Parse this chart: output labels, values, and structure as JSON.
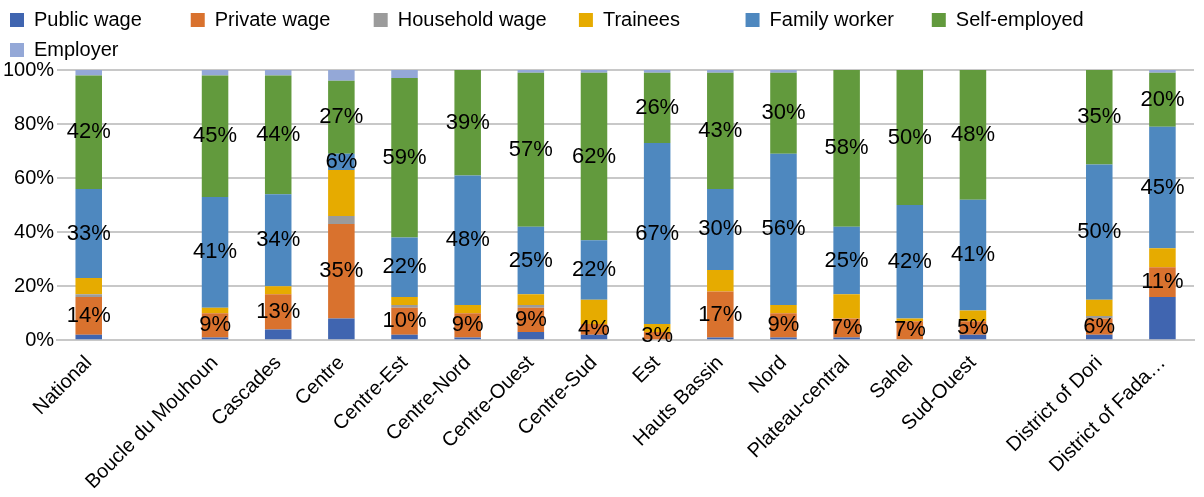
{
  "chart_data": {
    "type": "bar",
    "stacked": true,
    "categories": [
      "National",
      null,
      "Boucle du Mouhoun",
      "Cascades",
      "Centre",
      "Centre-Est",
      "Centre-Nord",
      "Centre-Ouest",
      "Centre-Sud",
      "Est",
      "Hauts Bassin",
      "Nord",
      "Plateau-central",
      "Sahel",
      "Sud-Ouest",
      null,
      "District of Dori",
      "District of Fada…"
    ],
    "ylim": [
      0,
      100
    ],
    "yticks": [
      {
        "value": 0,
        "label": "0%"
      },
      {
        "value": 20,
        "label": "20%"
      },
      {
        "value": 40,
        "label": "40%"
      },
      {
        "value": 60,
        "label": "60%"
      },
      {
        "value": 80,
        "label": "80%"
      },
      {
        "value": 100,
        "label": "100%"
      }
    ],
    "grid": "y",
    "legend": "top",
    "series": [
      {
        "name": "Public wage",
        "color": "#4065b0",
        "values": [
          2,
          null,
          1,
          4,
          8,
          2,
          1,
          3,
          2,
          0,
          1,
          1,
          1,
          0,
          2,
          null,
          2,
          16
        ]
      },
      {
        "name": "Private wage",
        "color": "#d9722e",
        "values": [
          14,
          null,
          9,
          13,
          35,
          10,
          9,
          9,
          4,
          3,
          17,
          9,
          7,
          7,
          5,
          null,
          6,
          11
        ],
        "value_labels": [
          "14%",
          null,
          "9%",
          "13%",
          "35%",
          "10%",
          "9%",
          "9%",
          "4%",
          "3%",
          "17%",
          "9%",
          "7%",
          "7%",
          "5%",
          null,
          "6%",
          "11%"
        ]
      },
      {
        "name": "Household wage",
        "color": "#9b9b9b",
        "values": [
          1,
          null,
          0,
          0,
          3,
          1,
          0,
          1,
          0,
          0,
          0,
          0,
          0,
          0,
          0,
          null,
          1,
          0
        ]
      },
      {
        "name": "Trainees",
        "color": "#e6ab00",
        "values": [
          6,
          null,
          2,
          3,
          17,
          3,
          3,
          4,
          9,
          3,
          8,
          3,
          9,
          1,
          4,
          null,
          6,
          7
        ]
      },
      {
        "name": "Family worker",
        "color": "#4e88bf",
        "values": [
          33,
          null,
          41,
          34,
          6,
          22,
          48,
          25,
          22,
          67,
          30,
          56,
          25,
          42,
          41,
          null,
          50,
          45
        ],
        "value_labels": [
          "33%",
          null,
          "41%",
          "34%",
          "6%",
          "22%",
          "48%",
          "25%",
          "22%",
          "67%",
          "30%",
          "56%",
          "25%",
          "42%",
          "41%",
          null,
          "50%",
          "45%"
        ]
      },
      {
        "name": "Self-employed",
        "color": "#629a3d",
        "values": [
          42,
          null,
          45,
          44,
          27,
          59,
          39,
          57,
          62,
          26,
          43,
          30,
          58,
          50,
          48,
          null,
          35,
          20
        ],
        "value_labels": [
          "42%",
          null,
          "45%",
          "44%",
          "27%",
          "59%",
          "39%",
          "57%",
          "62%",
          "26%",
          "43%",
          "30%",
          "58%",
          "50%",
          "48%",
          null,
          "35%",
          "20%"
        ]
      },
      {
        "name": "Employer",
        "color": "#94a8d7",
        "values": [
          2,
          null,
          2,
          2,
          4,
          3,
          0,
          1,
          1,
          1,
          1,
          1,
          0,
          0,
          0,
          null,
          0,
          1
        ]
      }
    ]
  }
}
